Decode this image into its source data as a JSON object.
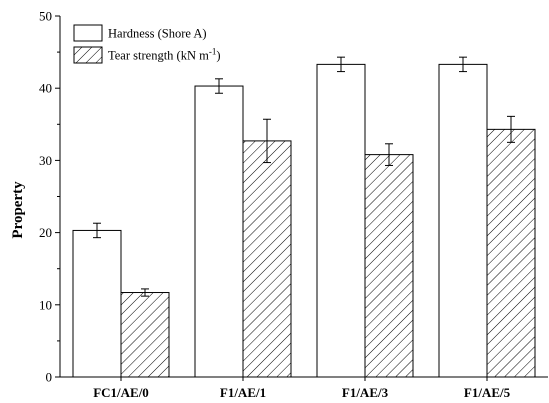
{
  "chart_data": {
    "type": "bar",
    "categories": [
      "FC1/AE/0",
      "F1/AE/1",
      "F1/AE/3",
      "F1/AE/5"
    ],
    "series": [
      {
        "name": "Hardness (Shore A)",
        "values": [
          20.3,
          40.3,
          43.3,
          43.3
        ],
        "errors": [
          1.0,
          1.0,
          1.0,
          1.0
        ],
        "fill": "white"
      },
      {
        "name": "Tear strength (kN m",
        "name_sup": "-1",
        "name_suffix": ")",
        "values": [
          11.7,
          32.7,
          30.8,
          34.3
        ],
        "errors": [
          0.5,
          3.0,
          1.5,
          1.8
        ],
        "fill": "hatched"
      }
    ],
    "ylabel": "Property",
    "xlabel": "",
    "ylim": [
      0,
      50
    ],
    "yticks": [
      0,
      10,
      20,
      30,
      40,
      50
    ],
    "ytick_labels": [
      "0",
      "10",
      "20",
      "30",
      "40",
      "50"
    ],
    "legend_position": "top-left",
    "grid": false
  },
  "colors": {
    "bar_stroke": "#000000",
    "bar_fill": "#ffffff",
    "hatch": "#000000"
  }
}
